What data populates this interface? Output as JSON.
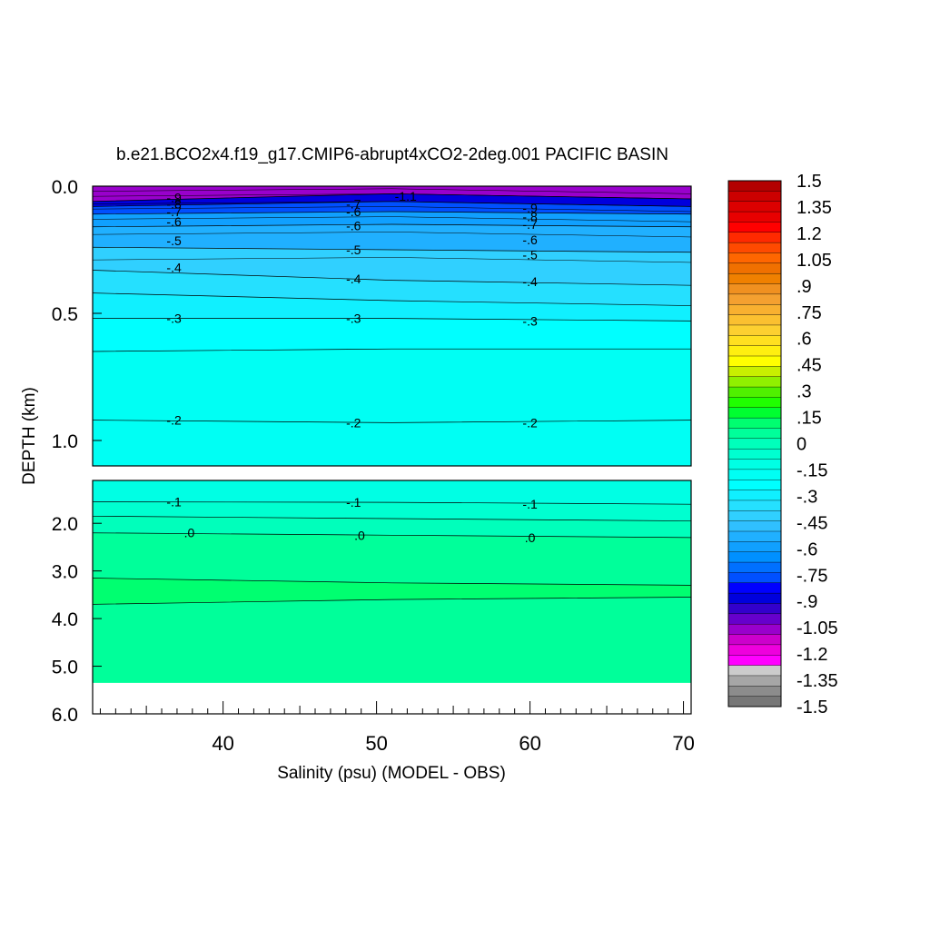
{
  "chart_data": {
    "type": "heatmap",
    "title": "b.e21.BCO2x4.f19_g17.CMIP6-abrupt4xCO2-2deg.001 PACIFIC BASIN",
    "xlabel": "Salinity (psu) (MODEL - OBS)",
    "ylabel": "DEPTH (km)",
    "x_range": [
      31.5,
      70.5
    ],
    "x_ticks": [
      {
        "value": 40,
        "label": "40"
      },
      {
        "value": 50,
        "label": "50"
      },
      {
        "value": 60,
        "label": "60"
      },
      {
        "value": 70,
        "label": "70"
      }
    ],
    "upper_panel": {
      "y_range": [
        0.0,
        1.1
      ],
      "y_ticks": [
        {
          "value": 0.0,
          "label": "0.0"
        },
        {
          "value": 0.5,
          "label": "0.5"
        },
        {
          "value": 1.0,
          "label": "1.0"
        }
      ]
    },
    "lower_panel": {
      "y_range": [
        1.1,
        6.0
      ],
      "y_ticks": [
        {
          "value": 2.0,
          "label": "2.0"
        },
        {
          "value": 3.0,
          "label": "3.0"
        },
        {
          "value": 4.0,
          "label": "4.0"
        },
        {
          "value": 5.0,
          "label": "5.0"
        },
        {
          "value": 6.0,
          "label": "6.0"
        }
      ]
    },
    "no_data_below_depth": 5.35,
    "upper_layers": [
      {
        "depth": [
          0.06,
          0.03,
          0.05
        ],
        "value": -1.05
      },
      {
        "depth": [
          0.08,
          0.06,
          0.08
        ],
        "value": -0.9
      },
      {
        "depth": [
          0.11,
          0.1,
          0.11
        ],
        "value": -0.75
      },
      {
        "depth": [
          0.16,
          0.15,
          0.16
        ],
        "value": -0.6
      },
      {
        "depth": [
          0.24,
          0.25,
          0.26
        ],
        "value": -0.5
      },
      {
        "depth": [
          0.33,
          0.37,
          0.39
        ],
        "value": -0.4
      },
      {
        "depth": [
          0.42,
          0.45,
          0.47
        ],
        "value": -0.35
      },
      {
        "depth": [
          0.52,
          0.52,
          0.53
        ],
        "value": -0.3
      },
      {
        "depth": [
          0.65,
          0.64,
          0.64
        ],
        "value": -0.25
      },
      {
        "depth": [
          0.92,
          0.93,
          0.92
        ],
        "value": -0.2
      },
      {
        "depth": [
          1.1,
          1.1,
          1.1
        ],
        "value": -0.15
      }
    ],
    "lower_layers": [
      {
        "depth": [
          1.55,
          1.56,
          1.6
        ],
        "value": -0.1
      },
      {
        "depth": [
          1.85,
          1.9,
          1.95
        ],
        "value": -0.05
      },
      {
        "depth": [
          2.2,
          2.25,
          2.3
        ],
        "value": 0.0
      },
      {
        "depth": [
          3.15,
          3.25,
          3.3
        ],
        "value": 0.05
      },
      {
        "depth": [
          3.7,
          3.6,
          3.55
        ],
        "value": 0.1
      },
      {
        "depth": [
          5.35,
          5.35,
          5.35
        ],
        "value": 0.05
      }
    ],
    "contour_labels": [
      {
        "x": 36.8,
        "depth": 0.045,
        "text": "-.9"
      },
      {
        "x": 36.8,
        "depth": 0.07,
        "text": "-.8"
      },
      {
        "x": 36.8,
        "depth": 0.1,
        "text": "-.7"
      },
      {
        "x": 36.8,
        "depth": 0.14,
        "text": "-.6"
      },
      {
        "x": 36.8,
        "depth": 0.215,
        "text": "-.5"
      },
      {
        "x": 36.8,
        "depth": 0.32,
        "text": "-.4"
      },
      {
        "x": 36.8,
        "depth": 0.52,
        "text": "-.3"
      },
      {
        "x": 36.8,
        "depth": 0.92,
        "text": "-.2"
      },
      {
        "x": 48.5,
        "depth": 0.07,
        "text": "-.7"
      },
      {
        "x": 48.5,
        "depth": 0.1,
        "text": "-.6"
      },
      {
        "x": 48.5,
        "depth": 0.155,
        "text": "-.6"
      },
      {
        "x": 48.5,
        "depth": 0.25,
        "text": "-.5"
      },
      {
        "x": 48.5,
        "depth": 0.365,
        "text": "-.4"
      },
      {
        "x": 48.5,
        "depth": 0.52,
        "text": "-.3"
      },
      {
        "x": 48.5,
        "depth": 0.93,
        "text": "-.2"
      },
      {
        "x": 51.9,
        "depth": 0.04,
        "text": "-1.1"
      },
      {
        "x": 60.0,
        "depth": 0.085,
        "text": "-.9"
      },
      {
        "x": 60.0,
        "depth": 0.12,
        "text": "-.8"
      },
      {
        "x": 60.0,
        "depth": 0.15,
        "text": "-.7"
      },
      {
        "x": 60.0,
        "depth": 0.21,
        "text": "-.6"
      },
      {
        "x": 60.0,
        "depth": 0.27,
        "text": "-.5"
      },
      {
        "x": 60.0,
        "depth": 0.375,
        "text": "-.4"
      },
      {
        "x": 60.0,
        "depth": 0.53,
        "text": "-.3"
      },
      {
        "x": 60.0,
        "depth": 0.93,
        "text": "-.2"
      },
      {
        "x": 36.8,
        "depth": 1.55,
        "text": "-.1"
      },
      {
        "x": 48.5,
        "depth": 1.56,
        "text": "-.1"
      },
      {
        "x": 60.0,
        "depth": 1.6,
        "text": "-.1"
      },
      {
        "x": 37.8,
        "depth": 2.2,
        "text": ".0"
      },
      {
        "x": 48.9,
        "depth": 2.25,
        "text": ".0"
      },
      {
        "x": 60.0,
        "depth": 2.3,
        "text": ".0"
      }
    ],
    "colorbar": {
      "min": -1.5,
      "max": 1.5,
      "labels": [
        "1.5",
        "1.35",
        "1.2",
        "1.05",
        ".9",
        ".75",
        ".6",
        ".45",
        ".3",
        ".15",
        "0",
        "-.15",
        "-.3",
        "-.45",
        "-.6",
        "-.75",
        "-.9",
        "-1.05",
        "-1.2",
        "-1.35",
        "-1.5"
      ],
      "colors": [
        "#b30000",
        "#cc0000",
        "#dd0000",
        "#e80000",
        "#ff0000",
        "#ff2a00",
        "#ff4a00",
        "#ff6600",
        "#f07000",
        "#f08000",
        "#f09020",
        "#f4a030",
        "#f8b030",
        "#fbc030",
        "#fdd030",
        "#ffe020",
        "#ffef10",
        "#ffff00",
        "#c8f000",
        "#90f000",
        "#50f000",
        "#20ff00",
        "#00ff30",
        "#00ff70",
        "#00ff9a",
        "#00ffbb",
        "#00ffd0",
        "#00ffe4",
        "#00fff4",
        "#00ffff",
        "#10f0ff",
        "#25e0ff",
        "#30d0ff",
        "#30c0ff",
        "#20b0ff",
        "#10a0ff",
        "#0090ff",
        "#0070ff",
        "#0050ff",
        "#0000ff",
        "#0000dd",
        "#3300cc",
        "#6600cc",
        "#9900cc",
        "#cc00cc",
        "#ee00dd",
        "#ff00ff",
        "#cccccc",
        "#a6a6a6",
        "#8c8c8c",
        "#777777"
      ]
    }
  }
}
